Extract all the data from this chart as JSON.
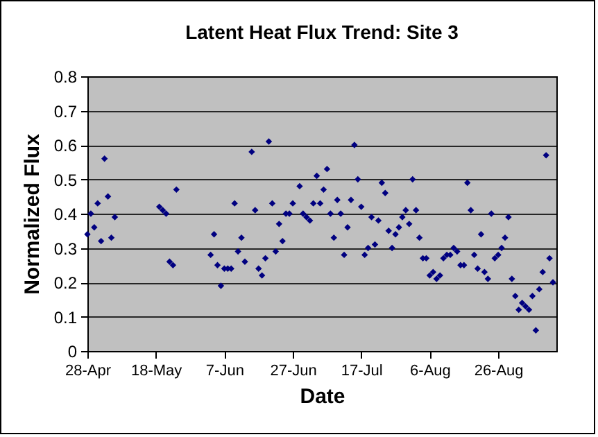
{
  "chart_data": {
    "type": "scatter",
    "title": "Latent Heat Flux Trend: Site 3",
    "xlabel": "Date",
    "ylabel": "Normalized Flux",
    "x": [
      "--04-28",
      "--04-29",
      "--04-30",
      "--05-01",
      "--05-02",
      "--05-03",
      "--05-04",
      "--05-05",
      "--05-06",
      "--05-19",
      "--05-20",
      "--05-21",
      "--05-22",
      "--05-23",
      "--05-24",
      "--06-03",
      "--06-04",
      "--06-05",
      "--06-06",
      "--06-07",
      "--06-08",
      "--06-09",
      "--06-10",
      "--06-11",
      "--06-12",
      "--06-13",
      "--06-15",
      "--06-16",
      "--06-17",
      "--06-18",
      "--06-19",
      "--06-20",
      "--06-21",
      "--06-22",
      "--06-23",
      "--06-24",
      "--06-25",
      "--06-26",
      "--06-27",
      "--06-29",
      "--06-30",
      "--07-01",
      "--07-02",
      "--07-03",
      "--07-04",
      "--07-05",
      "--07-06",
      "--07-07",
      "--07-08",
      "--07-09",
      "--07-10",
      "--07-11",
      "--07-12",
      "--07-13",
      "--07-14",
      "--07-15",
      "--07-16",
      "--07-17",
      "--07-18",
      "--07-19",
      "--07-20",
      "--07-21",
      "--07-22",
      "--07-23",
      "--07-24",
      "--07-25",
      "--07-26",
      "--07-27",
      "--07-28",
      "--07-29",
      "--07-30",
      "--07-31",
      "--08-01",
      "--08-02",
      "--08-03",
      "--08-04",
      "--08-05",
      "--08-06",
      "--08-07",
      "--08-08",
      "--08-09",
      "--08-10",
      "--08-11",
      "--08-12",
      "--08-13",
      "--08-14",
      "--08-15",
      "--08-16",
      "--08-17",
      "--08-18",
      "--08-19",
      "--08-20",
      "--08-21",
      "--08-22",
      "--08-23",
      "--08-24",
      "--08-25",
      "--08-26",
      "--08-27",
      "--08-28",
      "--08-29",
      "--08-30",
      "--08-31",
      "--09-01",
      "--09-02",
      "--09-03",
      "--09-04",
      "--09-05",
      "--09-06",
      "--09-07",
      "--09-08",
      "--09-09",
      "--09-10",
      "--09-11"
    ],
    "series": [
      {
        "color": "#000080",
        "values": [
          0.34,
          0.4,
          0.36,
          0.43,
          0.32,
          0.56,
          0.45,
          0.33,
          0.39,
          0.42,
          0.41,
          0.4,
          0.26,
          0.25,
          0.47,
          0.28,
          0.34,
          0.25,
          0.19,
          0.24,
          0.24,
          0.24,
          0.43,
          0.29,
          0.33,
          0.26,
          0.58,
          0.41,
          0.24,
          0.22,
          0.27,
          0.61,
          0.43,
          0.29,
          0.37,
          0.32,
          0.4,
          0.4,
          0.43,
          0.48,
          0.4,
          0.39,
          0.38,
          0.43,
          0.51,
          0.43,
          0.47,
          0.53,
          0.4,
          0.33,
          0.44,
          0.4,
          0.28,
          0.36,
          0.44,
          0.6,
          0.5,
          0.42,
          0.28,
          0.3,
          0.39,
          0.31,
          0.38,
          0.49,
          0.46,
          0.35,
          0.3,
          0.34,
          0.36,
          0.39,
          0.41,
          0.37,
          0.5,
          0.41,
          0.33,
          0.27,
          0.27,
          0.22,
          0.23,
          0.21,
          0.22,
          0.27,
          0.28,
          0.28,
          0.3,
          0.29,
          0.25,
          0.25,
          0.49,
          0.41,
          0.28,
          0.24,
          0.34,
          0.23,
          0.21,
          0.4,
          0.27,
          0.28,
          0.3,
          0.33,
          0.39,
          0.21,
          0.16,
          0.12,
          0.14,
          0.13,
          0.12,
          0.16,
          0.06,
          0.18,
          0.23,
          0.57,
          0.27,
          0.2
        ]
      }
    ],
    "xlim": [
      "--04-28",
      "--09-12"
    ],
    "xticks": [
      {
        "value": "--04-28",
        "label": "28-Apr"
      },
      {
        "value": "--05-18",
        "label": "18-May"
      },
      {
        "value": "--06-07",
        "label": "7-Jun"
      },
      {
        "value": "--06-27",
        "label": "27-Jun"
      },
      {
        "value": "--07-17",
        "label": "17-Jul"
      },
      {
        "value": "--08-06",
        "label": "6-Aug"
      },
      {
        "value": "--08-26",
        "label": "26-Aug"
      }
    ],
    "ylim": [
      0,
      0.8
    ],
    "yticks": [
      0,
      0.1,
      0.2,
      0.3,
      0.4,
      0.5,
      0.6,
      0.7,
      0.8
    ],
    "grid": "y",
    "marker": "diamond",
    "legend": false
  }
}
